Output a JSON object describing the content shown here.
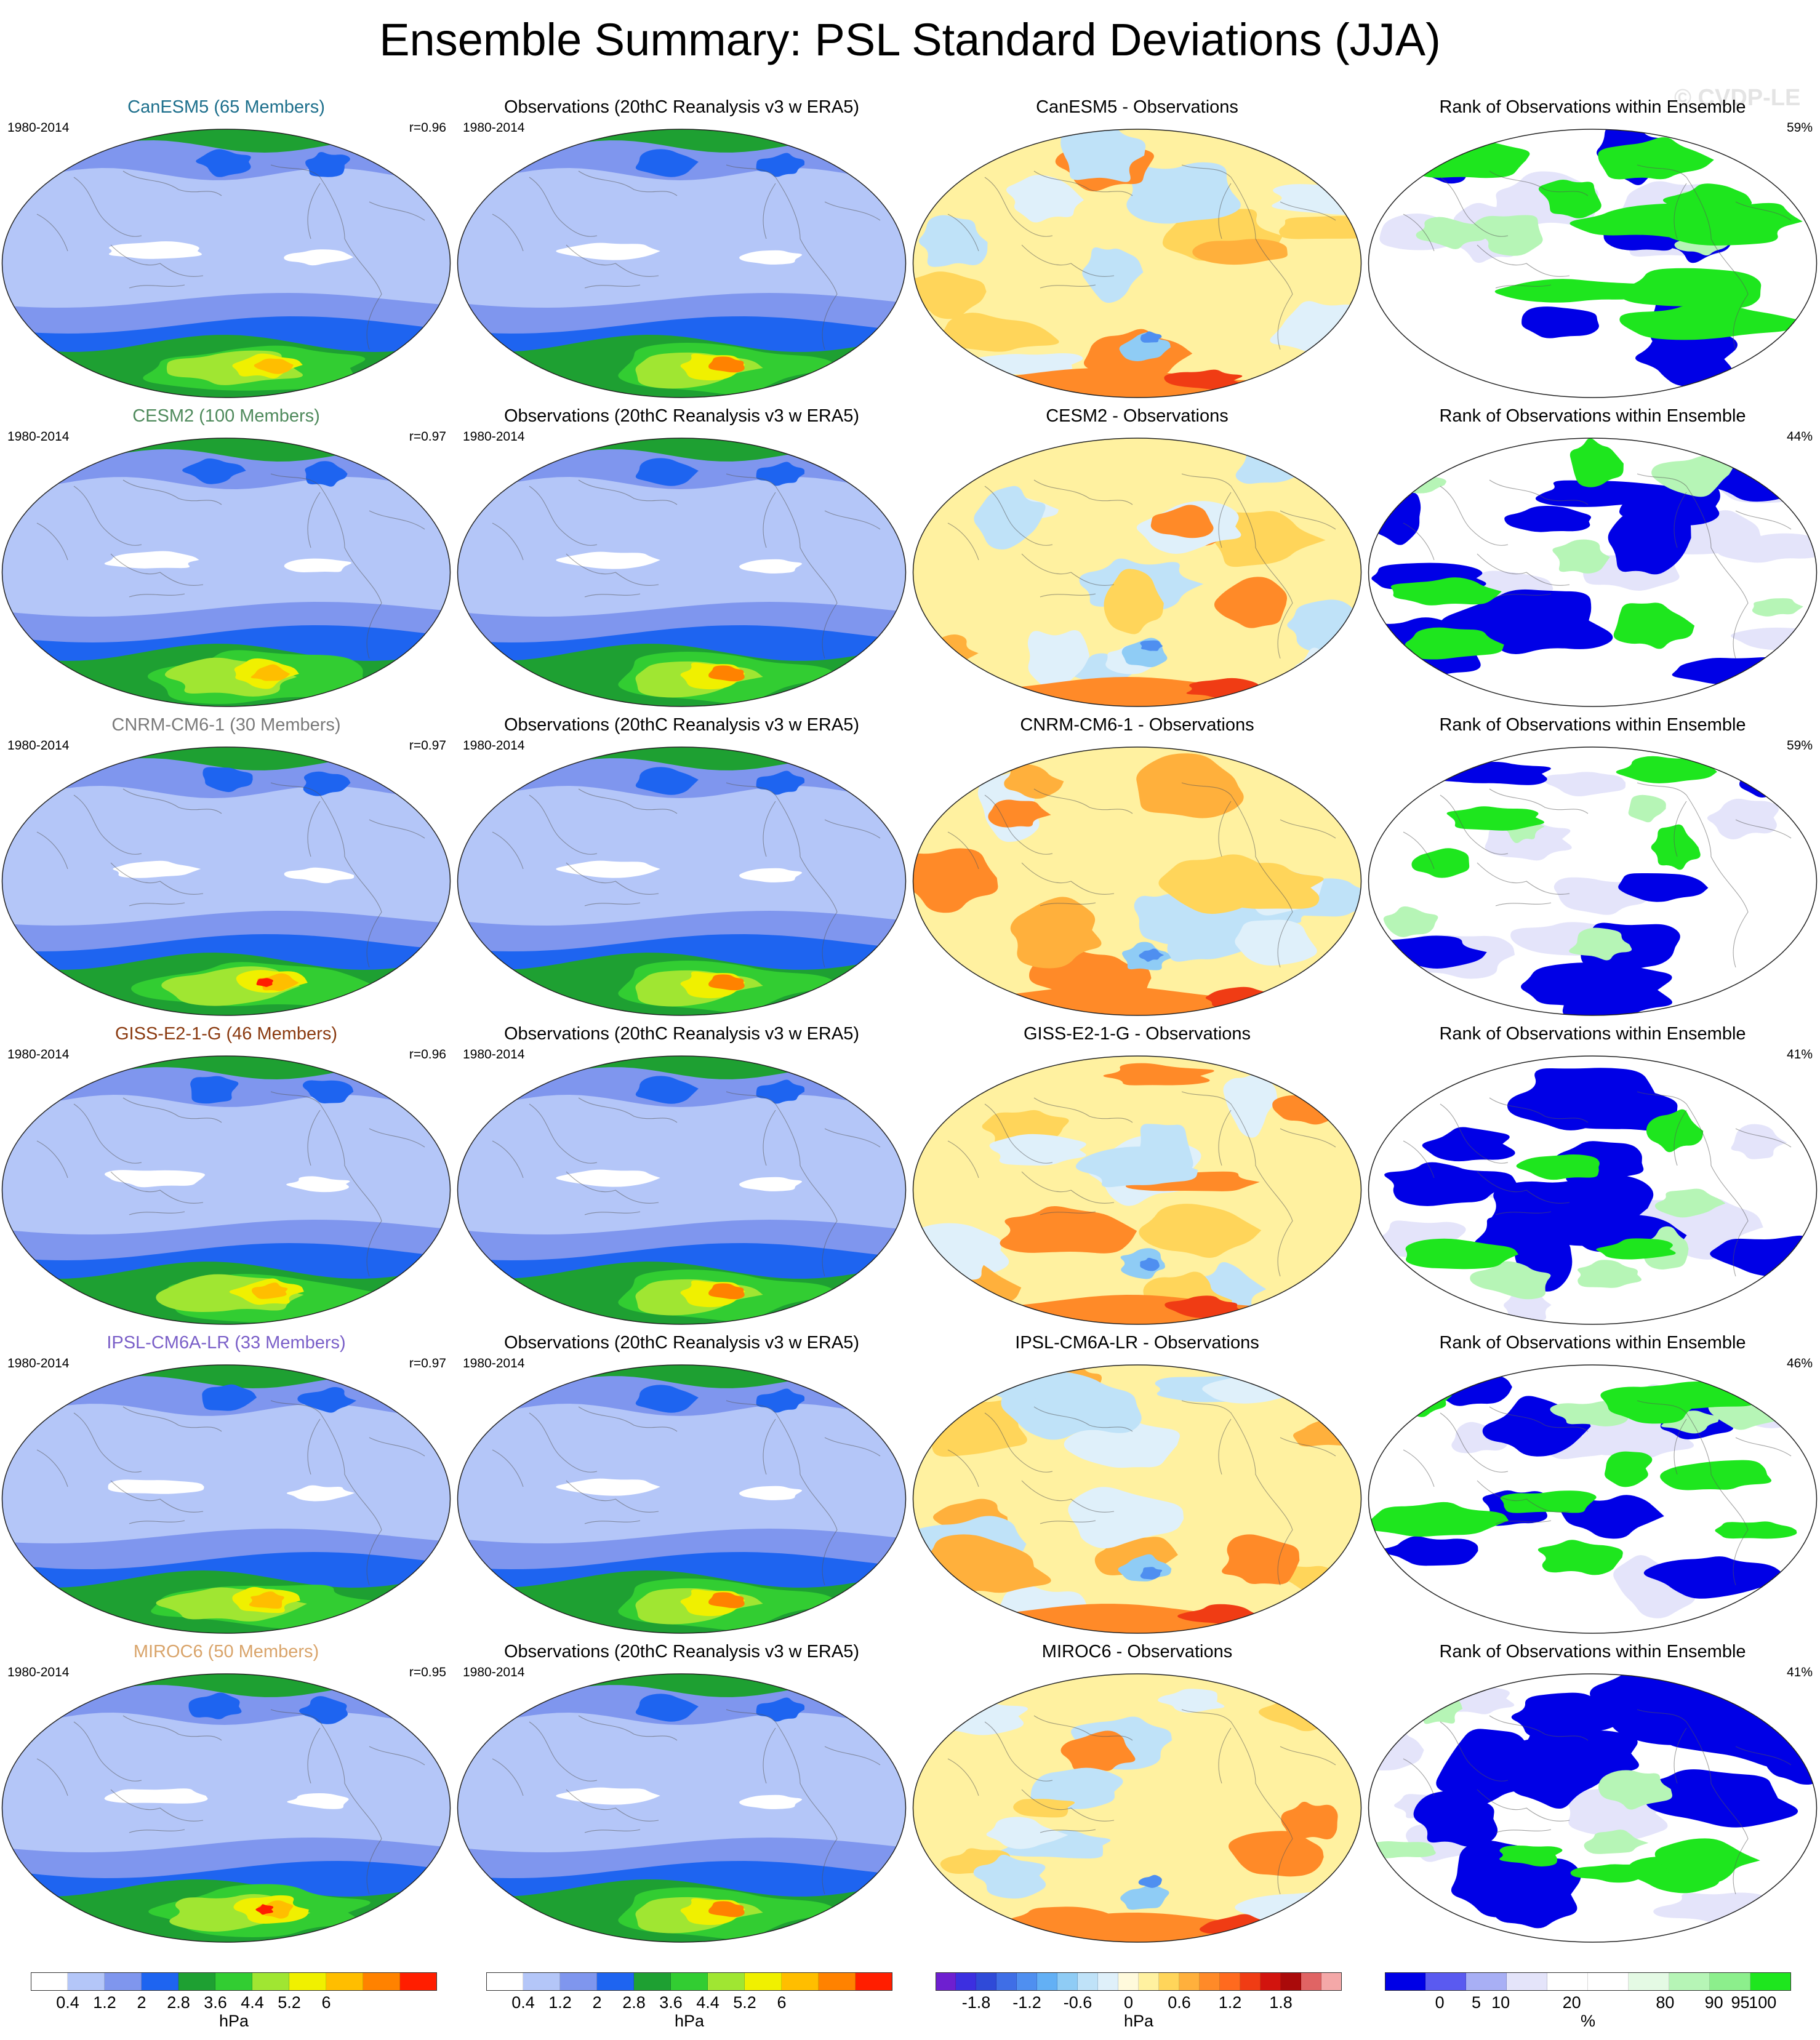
{
  "title": "Ensemble Summary: PSL Standard Deviations (JJA)",
  "watermark": "© CVDP-LE",
  "rows": [
    {
      "model": "CanESM5 (65 Members)",
      "model_color": "#1d6f8c",
      "period": "1980-2014",
      "r": "r=0.96",
      "obs_title": "Observations (20thC Reanalysis v3 w ERA5)",
      "obs_period": "1980-2014",
      "diff_title": "CanESM5 - Observations",
      "rank_title": "Rank of Observations within Ensemble",
      "rank_pct": "59%",
      "rank_lean": "green"
    },
    {
      "model": "CESM2 (100 Members)",
      "model_color": "#4f8a5c",
      "period": "1980-2014",
      "r": "r=0.97",
      "obs_title": "Observations (20thC Reanalysis v3 w ERA5)",
      "obs_period": "1980-2014",
      "diff_title": "CESM2 - Observations",
      "rank_title": "Rank of Observations within Ensemble",
      "rank_pct": "44%",
      "rank_lean": "blue"
    },
    {
      "model": "CNRM-CM6-1 (30 Members)",
      "model_color": "#7a7a7a",
      "period": "1980-2014",
      "r": "r=0.97",
      "obs_title": "Observations (20thC Reanalysis v3 w ERA5)",
      "obs_period": "1980-2014",
      "diff_title": "CNRM-CM6-1 - Observations",
      "rank_title": "Rank of Observations within Ensemble",
      "rank_pct": "59%",
      "rank_lean": "mixed"
    },
    {
      "model": "GISS-E2-1-G (46 Members)",
      "model_color": "#8a3a10",
      "period": "1980-2014",
      "r": "r=0.96",
      "obs_title": "Observations (20thC Reanalysis v3 w ERA5)",
      "obs_period": "1980-2014",
      "diff_title": "GISS-E2-1-G - Observations",
      "rank_title": "Rank of Observations within Ensemble",
      "rank_pct": "41%",
      "rank_lean": "blue"
    },
    {
      "model": "IPSL-CM6A-LR (33 Members)",
      "model_color": "#7a5fc8",
      "period": "1980-2014",
      "r": "r=0.97",
      "obs_title": "Observations (20thC Reanalysis v3 w ERA5)",
      "obs_period": "1980-2014",
      "diff_title": "IPSL-CM6A-LR - Observations",
      "rank_title": "Rank of Observations within Ensemble",
      "rank_pct": "46%",
      "rank_lean": "green"
    },
    {
      "model": "MIROC6 (50 Members)",
      "model_color": "#d9a46a",
      "period": "1980-2014",
      "r": "r=0.95",
      "obs_title": "Observations (20thC Reanalysis v3 w ERA5)",
      "obs_period": "1980-2014",
      "diff_title": "MIROC6 - Observations",
      "rank_title": "Rank of Observations within Ensemble",
      "rank_pct": "41%",
      "rank_lean": "blue"
    }
  ],
  "colorbars": [
    {
      "name": "psl-sd-model",
      "colors": [
        "#ffffff",
        "#b4c6f8",
        "#7f96ee",
        "#1e64f0",
        "#1ea032",
        "#32cd32",
        "#a0e632",
        "#f0f000",
        "#ffbe00",
        "#ff8200",
        "#ff1e00"
      ],
      "ticks": [
        "0.4",
        "1.2",
        "2",
        "2.8",
        "3.6",
        "4.4",
        "5.2",
        "6"
      ],
      "unit": "hPa"
    },
    {
      "name": "psl-sd-obs",
      "colors": [
        "#ffffff",
        "#b4c6f8",
        "#7f96ee",
        "#1e64f0",
        "#1ea032",
        "#32cd32",
        "#a0e632",
        "#f0f000",
        "#ffbe00",
        "#ff8200",
        "#ff1e00"
      ],
      "ticks": [
        "0.4",
        "1.2",
        "2",
        "2.8",
        "3.6",
        "4.4",
        "5.2",
        "6"
      ],
      "unit": "hPa"
    },
    {
      "name": "psl-sd-diff",
      "colors": [
        "#6e1fd0",
        "#3c2fe0",
        "#2f4ad8",
        "#3f6ee6",
        "#4f8ff0",
        "#63b0f5",
        "#8fccf5",
        "#bfe2f8",
        "#dff0fa",
        "#fffadc",
        "#fff1a0",
        "#ffd55a",
        "#ffb03c",
        "#ff8a28",
        "#ff6a1e",
        "#f03c14",
        "#d2140e",
        "#aa0a0a",
        "#e06464",
        "#f4a8a8"
      ],
      "ticks": [
        "-1.8",
        "-1.2",
        "-0.6",
        "0",
        "0.6",
        "1.2",
        "1.8"
      ],
      "unit": "hPa"
    },
    {
      "name": "rank",
      "colors": [
        "#0000e6",
        "#5a5af0",
        "#a8aff5",
        "#e4e4fa",
        "#ffffff",
        "#ffffff",
        "#e4fae4",
        "#b6f5b6",
        "#8cef8c",
        "#1ee61e"
      ],
      "ticks": [
        "0",
        "5",
        "10",
        "20",
        "80",
        "90",
        "95",
        "100"
      ],
      "unit": "%"
    }
  ]
}
